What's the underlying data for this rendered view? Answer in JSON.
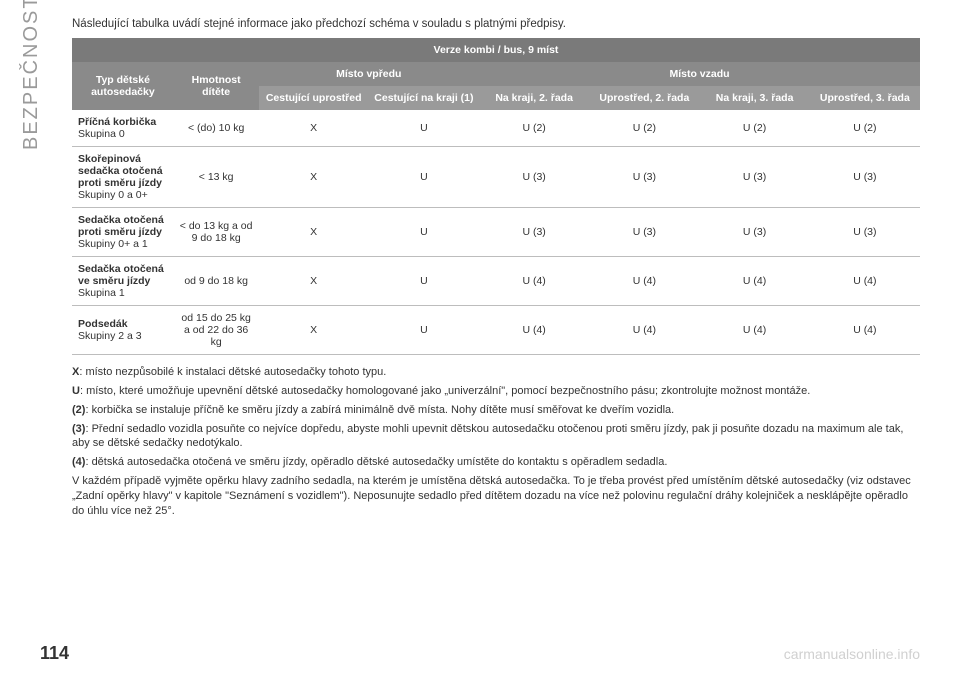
{
  "sideLabel": "BEZPEČNOST",
  "intro": "Následující tabulka uvádí stejné informace jako předchozí schéma v souladu s platnými předpisy.",
  "table": {
    "topHeader": "Verze kombi / bus, 9 míst",
    "col1": "Typ dětské autosedačky",
    "col2": "Hmotnost dítěte",
    "groupFront": "Místo vpředu",
    "groupRear": "Místo vzadu",
    "sub": {
      "c1": "Cestující uprostřed",
      "c2": "Cestující na kraji (1)",
      "c3": "Na kraji, 2. řada",
      "c4": "Uprostřed, 2. řada",
      "c5": "Na kraji, 3. řada",
      "c6": "Uprostřed, 3. řada"
    },
    "rows": [
      {
        "typeBold": "Příčná korbička",
        "typeRest": "Skupina 0",
        "weight": "< (do) 10 kg",
        "v": [
          "X",
          "U",
          "U (2)",
          "U (2)",
          "U (2)",
          "U (2)"
        ]
      },
      {
        "typeBold": "Skořepinová sedačka otočená proti směru jízdy",
        "typeRest": "Skupiny 0 a 0+",
        "weight": "< 13 kg",
        "v": [
          "X",
          "U",
          "U (3)",
          "U (3)",
          "U (3)",
          "U (3)"
        ]
      },
      {
        "typeBold": "Sedačka otočená proti směru jízdy",
        "typeRest": "Skupiny 0+ a 1",
        "weight": "< do 13 kg a od 9 do 18 kg",
        "v": [
          "X",
          "U",
          "U (3)",
          "U (3)",
          "U (3)",
          "U (3)"
        ]
      },
      {
        "typeBold": "Sedačka otočená ve směru jízdy",
        "typeRest": "Skupina 1",
        "weight": "od 9 do 18 kg",
        "v": [
          "X",
          "U",
          "U (4)",
          "U (4)",
          "U (4)",
          "U (4)"
        ]
      },
      {
        "typeBold": "Podsedák",
        "typeRest": "Skupiny 2 a 3",
        "weight": "od 15 do 25 kg a od 22 do 36 kg",
        "v": [
          "X",
          "U",
          "U (4)",
          "U (4)",
          "U (4)",
          "U (4)"
        ]
      }
    ]
  },
  "notes": [
    "<b>X</b>: místo nezpůsobilé k instalaci dětské autosedačky tohoto typu.",
    "<b>U</b>: místo, které umožňuje upevnění dětské autosedačky homologované jako „univerzální\", pomocí bezpečnostního pásu; zkontrolujte možnost montáže.",
    "<b>(2)</b>: korbička se instaluje příčně ke směru jízdy a zabírá minimálně dvě místa. Nohy dítěte musí směřovat ke dveřím vozidla.",
    "<b>(3)</b>: Přední sedadlo vozidla posuňte co nejvíce dopředu, abyste mohli upevnit dětskou autosedačku otočenou proti směru jízdy, pak ji posuňte dozadu na maximum ale tak, aby se dětské sedačky nedotýkalo.",
    "<b>(4)</b>: dětská autosedačka otočená ve směru jízdy, opěradlo dětské autosedačky umístěte do kontaktu s opěradlem sedadla.",
    "V každém případě vyjměte opěrku hlavy zadního sedadla, na kterém je umístěna dětská autosedačka. To je třeba provést před umístěním dětské autosedačky (viz odstavec „Zadní opěrky hlavy\" v kapitole \"Seznámení s vozidlem\"). Neposunujte sedadlo před dítětem dozadu na více než polovinu regulační dráhy kolejniček a nesklápějte opěradlo do úhlu více než 25°."
  ],
  "pageNumber": "114",
  "watermark": "carmanualsonline.info"
}
